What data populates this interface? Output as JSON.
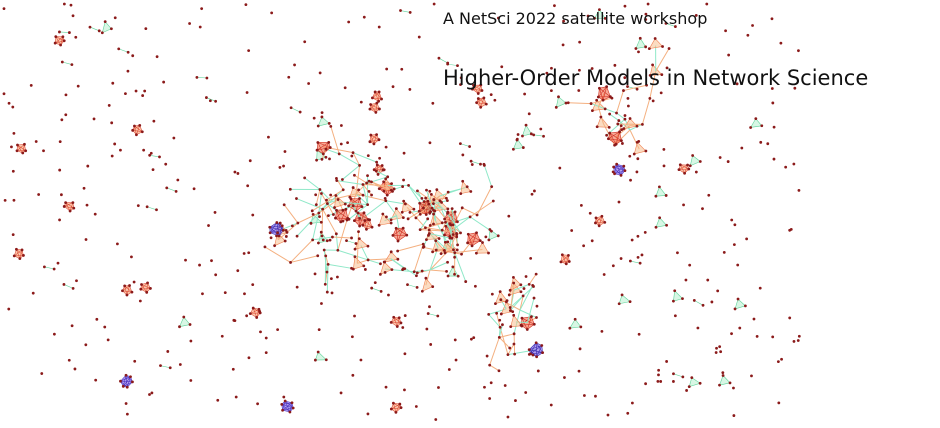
{
  "header": {
    "subtitle": "A NetSci 2022 satellite workshop",
    "title": "Higher-Order Models in Network Science"
  }
}
